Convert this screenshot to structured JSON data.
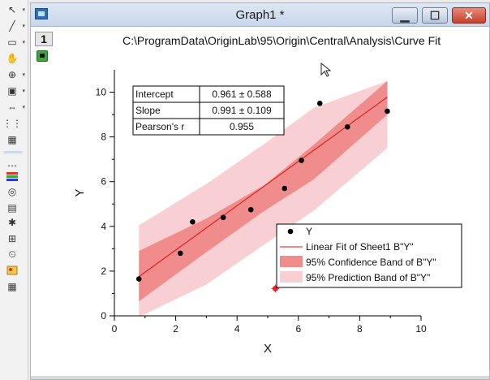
{
  "window": {
    "title": "Graph1 *",
    "layer_label": "1",
    "file_path": "C:\\ProgramData\\OriginLab\\95\\Origin\\Central\\Analysis\\Curve Fit"
  },
  "toolbar": {
    "icons": [
      "pointer-icon",
      "line-icon",
      "rectangle-icon",
      "hand-icon",
      "zoom-icon",
      "screen-reader-icon",
      "data-selector-icon",
      "mask-icon",
      "color-scale-icon",
      "layer-icon",
      "region-icon",
      "cursor-icon",
      "text-icon",
      "insert-graph-icon",
      "table-icon"
    ]
  },
  "colors": {
    "confidence_band": "#f08c8c",
    "prediction_band": "#f8d0d3",
    "fit_line": "#dd1111",
    "masked_point": "#ee2222"
  },
  "stats_table": {
    "rows": [
      {
        "label": "Intercept",
        "value": "0.961 ± 0.588"
      },
      {
        "label": "Slope",
        "value": "0.991 ± 0.109"
      },
      {
        "label": "Pearson's r",
        "value": "0.955"
      }
    ]
  },
  "chart_data": {
    "type": "scatter",
    "xlabel": "X",
    "ylabel": "Y",
    "xlim": [
      0,
      10
    ],
    "ylim": [
      0,
      11
    ],
    "xticks": [
      0,
      2,
      4,
      6,
      8,
      10
    ],
    "yticks": [
      0,
      2,
      4,
      6,
      8,
      10
    ],
    "grid": false,
    "legend_position": "bottom-right",
    "series": [
      {
        "name": "Y",
        "x": [
          0.8,
          2.15,
          2.55,
          3.55,
          4.45,
          5.55,
          6.1,
          6.7,
          7.6,
          8.9
        ],
        "y": [
          1.65,
          2.8,
          4.2,
          4.4,
          4.75,
          5.7,
          6.95,
          9.5,
          8.45,
          9.15
        ]
      },
      {
        "name": "Linear Fit of Sheet1 B\"Y\"",
        "intercept": 0.961,
        "slope": 0.991,
        "x_range": [
          0.8,
          8.9
        ]
      },
      {
        "name": "95% Confidence Band of B\"Y\"",
        "x": [
          0.8,
          3.0,
          4.9,
          6.5,
          8.9
        ],
        "upper": [
          2.9,
          4.35,
          5.85,
          7.65,
          10.5
        ],
        "lower": [
          0.65,
          2.85,
          4.7,
          6.1,
          9.0
        ]
      },
      {
        "name": "95% Prediction Band of B\"Y\"",
        "x": [
          0.8,
          3.0,
          4.9,
          6.5,
          8.9
        ],
        "upper": [
          4.05,
          5.9,
          7.7,
          9.3,
          10.5
        ],
        "lower": [
          -0.05,
          1.4,
          3.2,
          4.7,
          7.5
        ]
      }
    ],
    "masked_point": {
      "x": 5.25,
      "y": 1.22
    }
  }
}
